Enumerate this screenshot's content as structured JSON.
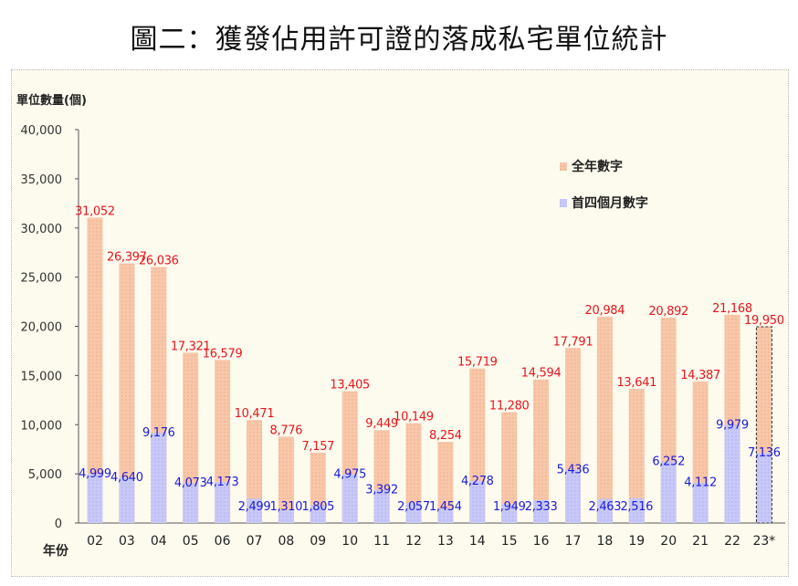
{
  "title": "圖二：獲發佔用許可證的落成私宅單位統計",
  "chart_data": {
    "type": "bar",
    "title": "圖二：獲發佔用許可證的落成私宅單位統計",
    "ylabel": "單位數量(個)",
    "xlabel": "年份",
    "ylim": [
      0,
      40000
    ],
    "yticks": [
      0,
      5000,
      10000,
      15000,
      20000,
      25000,
      30000,
      35000,
      40000
    ],
    "ytick_labels": [
      "0",
      "5,000",
      "10,000",
      "15,000",
      "20,000",
      "25,000",
      "30,000",
      "35,000",
      "40,000"
    ],
    "categories": [
      "02",
      "03",
      "04",
      "05",
      "06",
      "07",
      "08",
      "09",
      "10",
      "11",
      "12",
      "13",
      "14",
      "15",
      "16",
      "17",
      "18",
      "19",
      "20",
      "21",
      "22",
      "23*"
    ],
    "series": [
      {
        "name": "全年數字",
        "color": "#f7c4a6",
        "label_color": "#e8141c",
        "values": [
          31052,
          26397,
          26036,
          17321,
          16579,
          10471,
          8776,
          7157,
          13405,
          9449,
          10149,
          8254,
          15719,
          11280,
          14594,
          17791,
          20984,
          13641,
          20892,
          14387,
          21168,
          19950
        ],
        "labels": [
          "31,052",
          "26,397",
          "26,036",
          "17,321",
          "16,579",
          "10,471",
          "8,776",
          "7,157",
          "13,405",
          "9,449",
          "10,149",
          "8,254",
          "15,719",
          "11,280",
          "14,594",
          "17,791",
          "20,984",
          "13,641",
          "20,892",
          "14,387",
          "21,168",
          "19,950"
        ]
      },
      {
        "name": "首四個月數字",
        "color": "#c6c6f6",
        "label_color": "#1c1cd6",
        "values": [
          4999,
          4640,
          9176,
          4073,
          4173,
          2499,
          1310,
          1805,
          4975,
          3392,
          2057,
          1454,
          4278,
          1949,
          2333,
          5436,
          2463,
          2516,
          6252,
          4112,
          9979,
          7136
        ],
        "labels": [
          "4,999",
          "4,640",
          "9,176",
          "4,073",
          "4,173",
          "2,499",
          "1,310",
          "1,805",
          "4,975",
          "3,392",
          "2,057",
          "1,454",
          "4,278",
          "1,949",
          "2,333",
          "5,436",
          "2,463",
          "2,516",
          "6,252",
          "4,112",
          "9,979",
          "7,136"
        ]
      }
    ],
    "legend": "top-right",
    "grid": false,
    "annotation": "23* estimate outlined with dashed border"
  }
}
